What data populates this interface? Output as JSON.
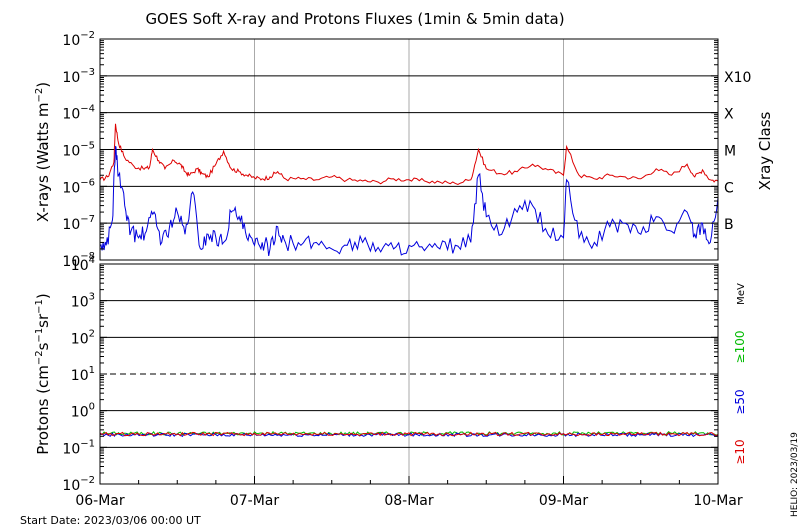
{
  "title": "GOES Soft X-ray and Protons Fluxes   (1min & 5min data)",
  "footer": {
    "start_date": "Start Date: 2023/03/06 00:00 UT",
    "stamp": "HELIO: 2023/03/19"
  },
  "x_ticks": [
    "06-Mar",
    "07-Mar",
    "08-Mar",
    "09-Mar",
    "10-Mar"
  ],
  "colors": {
    "red": "#dd0000",
    "blue": "#0000dd",
    "green": "#00bb00",
    "grid": "#000000",
    "vgrid": "#aaaaaa"
  },
  "chart_data": [
    {
      "type": "line",
      "title": "GOES Soft X-ray and Protons Fluxes   (1min & 5min data)",
      "ylabel": "X-rays (Watts m^-2)",
      "yscale": "log",
      "ylim": [
        1e-08,
        0.01
      ],
      "xlim": [
        "2023-03-06",
        "2023-03-10"
      ],
      "y_tick_labels": [
        "10^-2",
        "10^-3",
        "10^-4",
        "10^-5",
        "10^-6",
        "10^-7",
        "10^-8"
      ],
      "right_axis_label": "Xray Class",
      "class_labels": [
        {
          "label": "X10",
          "value": 0.001
        },
        {
          "label": "X",
          "value": 0.0001
        },
        {
          "label": "M",
          "value": 1e-05
        },
        {
          "label": "C",
          "value": 1e-06
        },
        {
          "label": "B",
          "value": 1e-07
        }
      ],
      "series": [
        {
          "color": "red",
          "x": [
            0,
            0.05,
            0.09,
            0.1,
            0.12,
            0.16,
            0.22,
            0.28,
            0.32,
            0.34,
            0.38,
            0.42,
            0.48,
            0.52,
            0.55,
            0.58,
            0.63,
            0.66,
            0.7,
            0.75,
            0.8,
            0.85,
            0.9,
            0.95,
            1.0,
            1.05,
            1.1,
            1.15,
            1.2,
            1.3,
            1.4,
            1.5,
            1.6,
            1.7,
            1.8,
            1.9,
            2.0,
            2.1,
            2.2,
            2.3,
            2.4,
            2.45,
            2.5,
            2.6,
            2.7,
            2.8,
            2.9,
            3.0,
            3.02,
            3.1,
            3.2,
            3.3,
            3.4,
            3.5,
            3.6,
            3.7,
            3.8,
            3.85,
            3.9,
            3.95,
            4.0
          ],
          "y": [
            1.5e-06,
            1.8e-06,
            4.5e-06,
            5e-05,
            1.5e-05,
            6e-06,
            3.5e-06,
            3e-06,
            3.2e-06,
            1e-05,
            5e-06,
            3e-06,
            5e-06,
            4e-06,
            2.5e-06,
            2e-06,
            3e-06,
            2.2e-06,
            1.8e-06,
            4e-06,
            9e-06,
            3e-06,
            2.5e-06,
            2e-06,
            1.7e-06,
            1.6e-06,
            1.8e-06,
            2.5e-06,
            1.6e-06,
            1.6e-06,
            1.5e-06,
            1.8e-06,
            1.5e-06,
            1.4e-06,
            1.3e-06,
            1.6e-06,
            1.5e-06,
            1.4e-06,
            1.3e-06,
            1.2e-06,
            1.5e-06,
            1e-05,
            3e-06,
            2.2e-06,
            2.5e-06,
            4e-06,
            2.8e-06,
            2e-06,
            1.2e-05,
            2e-06,
            1.6e-06,
            2e-06,
            1.8e-06,
            1.6e-06,
            3e-06,
            2e-06,
            4e-06,
            1.8e-06,
            2.8e-06,
            1.5e-06,
            1.4e-06
          ]
        },
        {
          "color": "blue",
          "x": [
            0,
            0.04,
            0.08,
            0.1,
            0.12,
            0.16,
            0.2,
            0.25,
            0.3,
            0.35,
            0.4,
            0.45,
            0.5,
            0.55,
            0.6,
            0.65,
            0.7,
            0.75,
            0.8,
            0.85,
            0.9,
            0.95,
            1.0,
            1.05,
            1.1,
            1.15,
            1.2,
            1.3,
            1.4,
            1.5,
            1.6,
            1.7,
            1.8,
            1.9,
            2.0,
            2.1,
            2.2,
            2.3,
            2.4,
            2.45,
            2.5,
            2.6,
            2.7,
            2.8,
            2.9,
            3.0,
            3.02,
            3.1,
            3.2,
            3.3,
            3.4,
            3.5,
            3.6,
            3.7,
            3.8,
            3.85,
            3.9,
            3.95,
            4.0
          ],
          "y": [
            2.5e-08,
            2.5e-08,
            1.2e-07,
            1.2e-05,
            2e-06,
            3e-07,
            6e-08,
            4e-08,
            6e-08,
            2e-07,
            3e-08,
            8e-08,
            2e-07,
            5e-08,
            7e-07,
            2e-08,
            5e-08,
            4e-08,
            3e-08,
            2e-07,
            1.5e-07,
            4e-08,
            2.5e-08,
            3e-08,
            2e-08,
            8e-08,
            3e-08,
            2.5e-08,
            3e-08,
            2e-08,
            2.5e-08,
            3e-08,
            2.2e-08,
            2e-08,
            2.5e-08,
            1.8e-08,
            2e-08,
            2.5e-08,
            3e-08,
            2e-06,
            1.5e-07,
            5e-08,
            2e-07,
            3e-07,
            5e-08,
            4e-08,
            1.5e-06,
            4e-08,
            3e-08,
            8e-08,
            1e-07,
            5e-08,
            1.5e-07,
            6e-08,
            2e-07,
            5e-08,
            1e-07,
            3e-08,
            5e-07
          ]
        }
      ]
    },
    {
      "type": "line",
      "ylabel": "Protons (cm^-2 s^-1 sr^-1)",
      "yscale": "log",
      "ylim": [
        0.01,
        10000
      ],
      "xlim": [
        "2023-03-06",
        "2023-03-10"
      ],
      "y_tick_labels": [
        "10^4",
        "10^3",
        "10^2",
        "10^1",
        "10^0",
        "10^-1",
        "10^-2"
      ],
      "threshold": 10,
      "right_axis_unit": "MeV",
      "series": [
        {
          "name": "≥100",
          "color": "green",
          "level": 0.24
        },
        {
          "name": "≥50",
          "color": "blue",
          "level": 0.22
        },
        {
          "name": "≥10",
          "color": "red",
          "level": 0.23
        }
      ]
    }
  ]
}
